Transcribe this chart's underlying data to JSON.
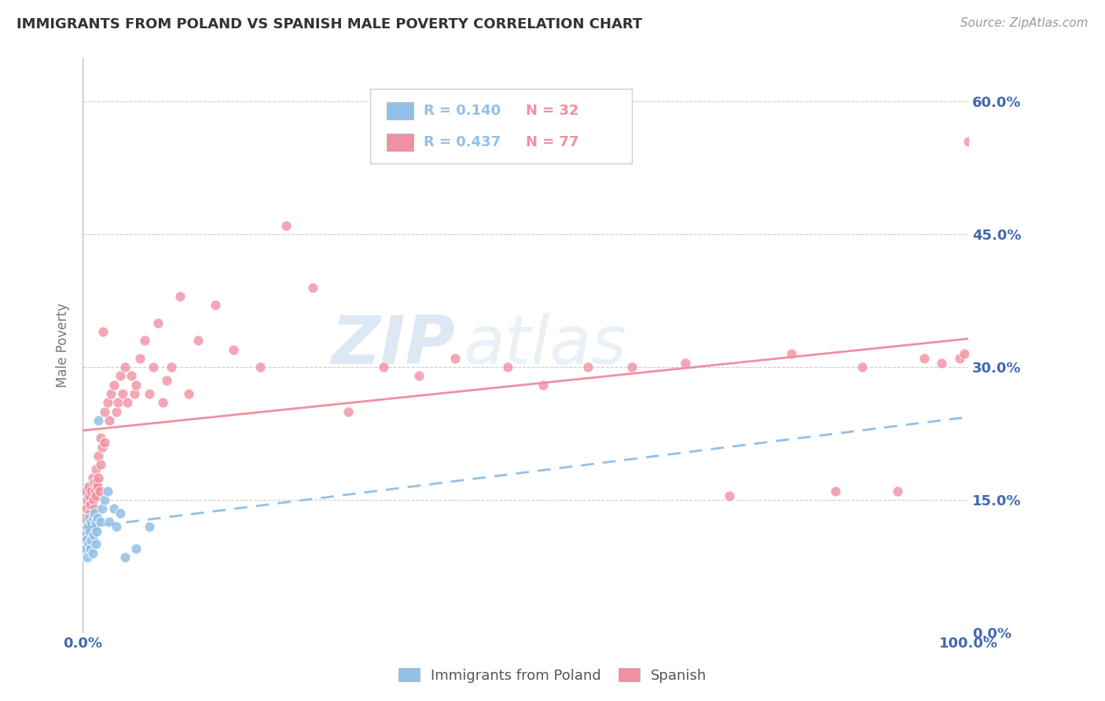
{
  "title": "IMMIGRANTS FROM POLAND VS SPANISH MALE POVERTY CORRELATION CHART",
  "source": "Source: ZipAtlas.com",
  "ylabel": "Male Poverty",
  "legend_label1": "Immigrants from Poland",
  "legend_label2": "Spanish",
  "r1": "0.140",
  "n1": "32",
  "r2": "0.437",
  "n2": "77",
  "xmin": 0.0,
  "xmax": 1.0,
  "ymin": 0.0,
  "ymax": 0.65,
  "yticks": [
    0.0,
    0.15,
    0.3,
    0.45,
    0.6
  ],
  "ytick_labels": [
    "0.0%",
    "15.0%",
    "30.0%",
    "45.0%",
    "60.0%"
  ],
  "color_blue": "#92C0E8",
  "color_pink": "#F090A0",
  "color_text": "#4169B0",
  "watermark_zip": "ZIP",
  "watermark_atlas": "atlas",
  "poland_x": [
    0.002,
    0.003,
    0.004,
    0.005,
    0.006,
    0.007,
    0.007,
    0.008,
    0.009,
    0.01,
    0.01,
    0.011,
    0.012,
    0.012,
    0.013,
    0.014,
    0.015,
    0.015,
    0.016,
    0.017,
    0.018,
    0.02,
    0.022,
    0.025,
    0.028,
    0.03,
    0.035,
    0.038,
    0.042,
    0.048,
    0.06,
    0.075
  ],
  "poland_y": [
    0.11,
    0.095,
    0.105,
    0.085,
    0.12,
    0.13,
    0.1,
    0.115,
    0.095,
    0.105,
    0.125,
    0.09,
    0.13,
    0.11,
    0.135,
    0.12,
    0.125,
    0.1,
    0.115,
    0.13,
    0.24,
    0.125,
    0.14,
    0.15,
    0.16,
    0.125,
    0.14,
    0.12,
    0.135,
    0.085,
    0.095,
    0.12
  ],
  "spanish_x": [
    0.002,
    0.003,
    0.004,
    0.005,
    0.006,
    0.007,
    0.008,
    0.008,
    0.009,
    0.01,
    0.01,
    0.011,
    0.012,
    0.013,
    0.013,
    0.014,
    0.015,
    0.015,
    0.016,
    0.017,
    0.018,
    0.018,
    0.019,
    0.02,
    0.02,
    0.022,
    0.023,
    0.025,
    0.025,
    0.028,
    0.03,
    0.032,
    0.035,
    0.038,
    0.04,
    0.042,
    0.045,
    0.048,
    0.05,
    0.055,
    0.058,
    0.06,
    0.065,
    0.07,
    0.075,
    0.08,
    0.085,
    0.09,
    0.095,
    0.1,
    0.11,
    0.12,
    0.13,
    0.15,
    0.17,
    0.2,
    0.23,
    0.26,
    0.3,
    0.34,
    0.38,
    0.42,
    0.48,
    0.52,
    0.57,
    0.62,
    0.68,
    0.73,
    0.8,
    0.85,
    0.88,
    0.92,
    0.95,
    0.97,
    0.99,
    0.995,
    1.0
  ],
  "spanish_y": [
    0.13,
    0.16,
    0.14,
    0.15,
    0.12,
    0.165,
    0.135,
    0.155,
    0.145,
    0.16,
    0.13,
    0.175,
    0.15,
    0.14,
    0.17,
    0.16,
    0.155,
    0.185,
    0.17,
    0.165,
    0.175,
    0.2,
    0.16,
    0.19,
    0.22,
    0.21,
    0.34,
    0.215,
    0.25,
    0.26,
    0.24,
    0.27,
    0.28,
    0.25,
    0.26,
    0.29,
    0.27,
    0.3,
    0.26,
    0.29,
    0.27,
    0.28,
    0.31,
    0.33,
    0.27,
    0.3,
    0.35,
    0.26,
    0.285,
    0.3,
    0.38,
    0.27,
    0.33,
    0.37,
    0.32,
    0.3,
    0.46,
    0.39,
    0.25,
    0.3,
    0.29,
    0.31,
    0.3,
    0.28,
    0.3,
    0.3,
    0.305,
    0.155,
    0.315,
    0.16,
    0.3,
    0.16,
    0.31,
    0.305,
    0.31,
    0.315,
    0.555
  ]
}
